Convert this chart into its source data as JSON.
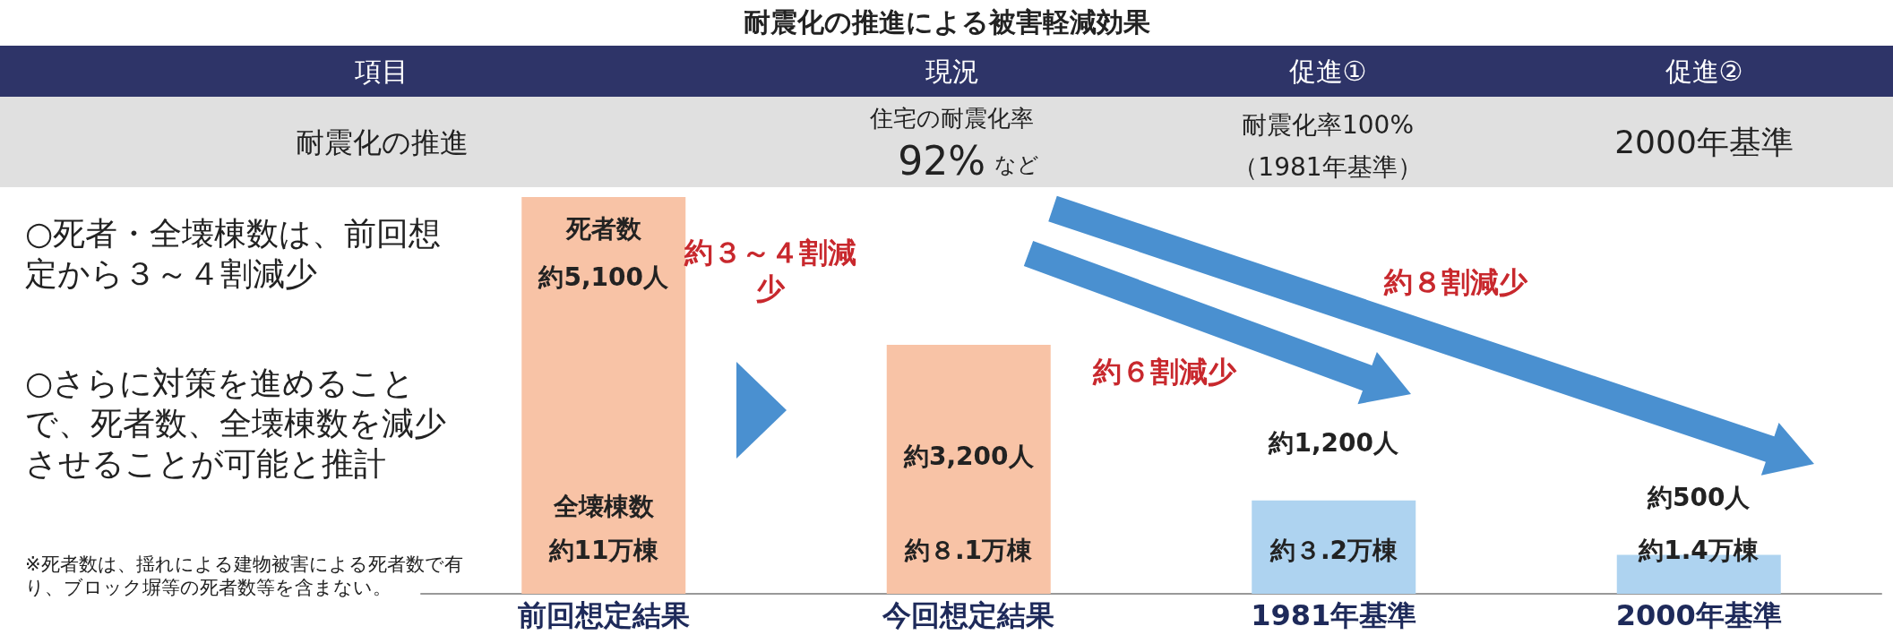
{
  "chart_data": {
    "type": "bar",
    "title": "耐震化の推進による被害軽減効果",
    "categories": [
      "前回想定結果",
      "今回想定結果",
      "1981年基準",
      "2000年基準"
    ],
    "values": [
      5100,
      3200,
      1200,
      500
    ],
    "colors": [
      "#f8c3a6",
      "#f8c3a6",
      "#aed3f0",
      "#aed3f0"
    ],
    "value_labels": [
      "約5,100人",
      "約3,200人",
      "約1,200人",
      "約500人"
    ],
    "annotations": [
      "項目",
      "現況",
      "促進①",
      "促進②",
      "耐震化の推進",
      "住宅の耐震化率",
      "92%",
      "など",
      "耐震化率100%",
      "（1981年基準）",
      "2000年基準",
      "○死者・全壊棟数は、前回想定から３～４割減少",
      "○さらに対策を進めることで、死者数、全壊棟数を減少させることが可能と推計",
      "※死者数は、揺れによる建物被害による死者数で有り、ブロック塀等の死者数等を含まない。",
      "約３～４割減少",
      "約６割減少",
      "約８割減少",
      "死者数",
      "全壊棟数",
      "約11万棟",
      "約８.1万棟",
      "約３.2万棟",
      "約1.4万棟"
    ]
  }
}
